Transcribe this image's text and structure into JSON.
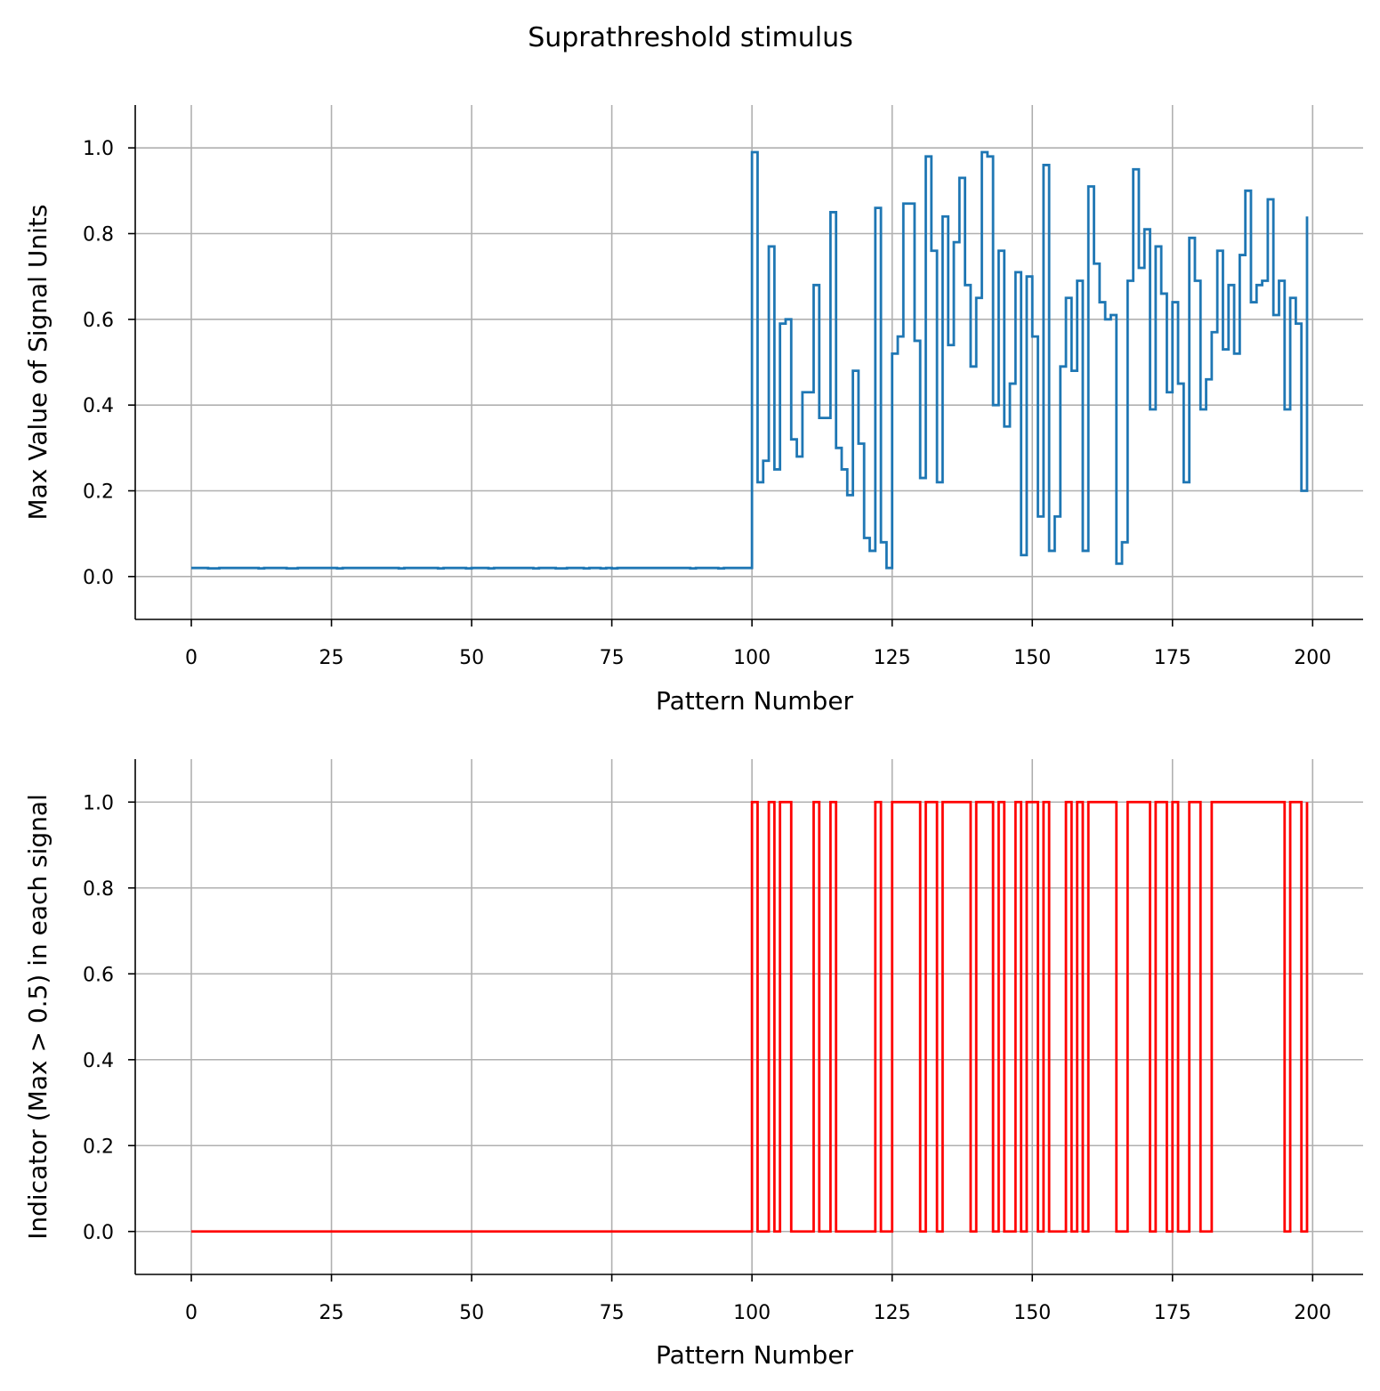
{
  "suptitle": "Suprathreshold stimulus",
  "chart_data": [
    {
      "type": "line",
      "step": "post",
      "title": "",
      "xlabel": "Pattern Number",
      "ylabel": "Max Value of Signal Units",
      "xlim": [
        -10,
        209
      ],
      "ylim": [
        -0.1,
        1.1
      ],
      "xticks": [
        0,
        25,
        50,
        75,
        100,
        125,
        150,
        175,
        200
      ],
      "yticks": [
        0.0,
        0.2,
        0.4,
        0.6,
        0.8,
        1.0
      ],
      "grid": true,
      "color": "#1f77b4",
      "series": [
        {
          "x_start": 0,
          "values": [
            0.02,
            0.02,
            0.02,
            0.019,
            0.019,
            0.02,
            0.02,
            0.02,
            0.02,
            0.02,
            0.02,
            0.02,
            0.019,
            0.02,
            0.02,
            0.02,
            0.02,
            0.019,
            0.019,
            0.02,
            0.02,
            0.02,
            0.02,
            0.02,
            0.02,
            0.02,
            0.019,
            0.02,
            0.02,
            0.02,
            0.02,
            0.02,
            0.02,
            0.02,
            0.02,
            0.02,
            0.02,
            0.019,
            0.02,
            0.02,
            0.02,
            0.02,
            0.02,
            0.02,
            0.019,
            0.02,
            0.02,
            0.02,
            0.02,
            0.019,
            0.02,
            0.02,
            0.02,
            0.019,
            0.02,
            0.02,
            0.02,
            0.02,
            0.02,
            0.02,
            0.02,
            0.019,
            0.02,
            0.02,
            0.02,
            0.019,
            0.019,
            0.02,
            0.02,
            0.02,
            0.019,
            0.02,
            0.02,
            0.019,
            0.02,
            0.019,
            0.02,
            0.02,
            0.02,
            0.02,
            0.02,
            0.02,
            0.02,
            0.02,
            0.02,
            0.02,
            0.02,
            0.02,
            0.02,
            0.019,
            0.02,
            0.02,
            0.02,
            0.02,
            0.019,
            0.02,
            0.02,
            0.02,
            0.02,
            0.02,
            0.99,
            0.22,
            0.27,
            0.77,
            0.25,
            0.59,
            0.6,
            0.32,
            0.28,
            0.43,
            0.43,
            0.68,
            0.37,
            0.37,
            0.85,
            0.3,
            0.25,
            0.19,
            0.48,
            0.31,
            0.09,
            0.06,
            0.86,
            0.08,
            0.02,
            0.52,
            0.56,
            0.87,
            0.87,
            0.55,
            0.23,
            0.98,
            0.76,
            0.22,
            0.84,
            0.54,
            0.78,
            0.93,
            0.68,
            0.49,
            0.65,
            0.99,
            0.98,
            0.4,
            0.76,
            0.35,
            0.45,
            0.71,
            0.05,
            0.7,
            0.56,
            0.14,
            0.96,
            0.06,
            0.14,
            0.49,
            0.65,
            0.48,
            0.69,
            0.06,
            0.91,
            0.73,
            0.64,
            0.6,
            0.61,
            0.03,
            0.08,
            0.69,
            0.95,
            0.72,
            0.81,
            0.39,
            0.77,
            0.66,
            0.43,
            0.64,
            0.45,
            0.22,
            0.79,
            0.69,
            0.39,
            0.46,
            0.57,
            0.76,
            0.53,
            0.68,
            0.52,
            0.75,
            0.9,
            0.64,
            0.68,
            0.69,
            0.88,
            0.61,
            0.69,
            0.39,
            0.65,
            0.59,
            0.2,
            0.84
          ]
        }
      ]
    },
    {
      "type": "line",
      "step": "post",
      "title": "",
      "xlabel": "Pattern Number",
      "ylabel": "Indicator (Max > 0.5) in each signal",
      "xlim": [
        -10,
        209
      ],
      "ylim": [
        -0.1,
        1.1
      ],
      "xticks": [
        0,
        25,
        50,
        75,
        100,
        125,
        150,
        175,
        200
      ],
      "yticks": [
        0.0,
        0.2,
        0.4,
        0.6,
        0.8,
        1.0
      ],
      "grid": true,
      "color": "#ff0000",
      "series": [
        {
          "x_start": 0,
          "values": [
            0,
            0,
            0,
            0,
            0,
            0,
            0,
            0,
            0,
            0,
            0,
            0,
            0,
            0,
            0,
            0,
            0,
            0,
            0,
            0,
            0,
            0,
            0,
            0,
            0,
            0,
            0,
            0,
            0,
            0,
            0,
            0,
            0,
            0,
            0,
            0,
            0,
            0,
            0,
            0,
            0,
            0,
            0,
            0,
            0,
            0,
            0,
            0,
            0,
            0,
            0,
            0,
            0,
            0,
            0,
            0,
            0,
            0,
            0,
            0,
            0,
            0,
            0,
            0,
            0,
            0,
            0,
            0,
            0,
            0,
            0,
            0,
            0,
            0,
            0,
            0,
            0,
            0,
            0,
            0,
            0,
            0,
            0,
            0,
            0,
            0,
            0,
            0,
            0,
            0,
            0,
            0,
            0,
            0,
            0,
            0,
            0,
            0,
            0,
            0,
            1,
            0,
            0,
            1,
            0,
            1,
            1,
            0,
            0,
            0,
            0,
            1,
            0,
            0,
            1,
            0,
            0,
            0,
            0,
            0,
            0,
            0,
            1,
            0,
            0,
            1,
            1,
            1,
            1,
            1,
            0,
            1,
            1,
            0,
            1,
            1,
            1,
            1,
            1,
            0,
            1,
            1,
            1,
            0,
            1,
            0,
            0,
            1,
            0,
            1,
            1,
            0,
            1,
            0,
            0,
            0,
            1,
            0,
            1,
            0,
            1,
            1,
            1,
            1,
            1,
            0,
            0,
            1,
            1,
            1,
            1,
            0,
            1,
            1,
            0,
            1,
            0,
            0,
            1,
            1,
            0,
            0,
            1,
            1,
            1,
            1,
            1,
            1,
            1,
            1,
            1,
            1,
            1,
            1,
            1,
            0,
            1,
            1,
            0,
            1
          ]
        }
      ]
    }
  ]
}
